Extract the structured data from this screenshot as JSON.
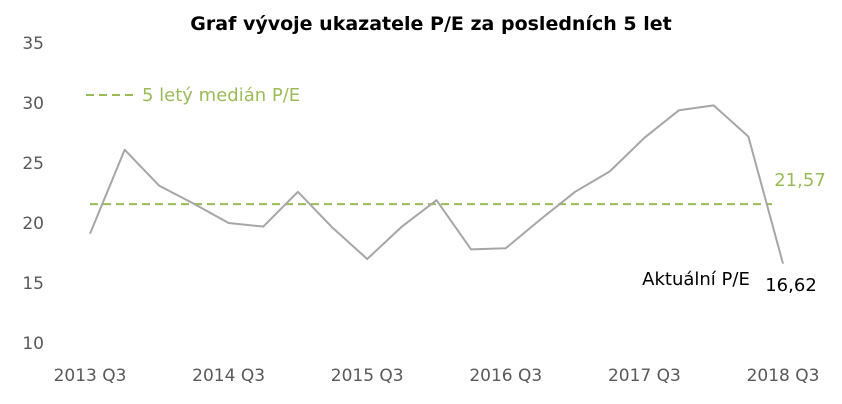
{
  "chart_data": {
    "type": "line",
    "title": "Graf vývoje ukazatele P/E za posledních 5 let",
    "xlabel": "",
    "ylabel": "",
    "ylim": [
      10,
      35
    ],
    "y_ticks": [
      "10",
      "15",
      "20",
      "25",
      "30",
      "35"
    ],
    "x_tick_labels": [
      "2013 Q3",
      "2014 Q3",
      "2015 Q3",
      "2016 Q3",
      "2017 Q3",
      "2018 Q3"
    ],
    "x": [
      "2013 Q3",
      "2013 Q4",
      "2014 Q1",
      "2014 Q2",
      "2014 Q3",
      "2014 Q4",
      "2015 Q1",
      "2015 Q2",
      "2015 Q3",
      "2015 Q4",
      "2016 Q1",
      "2016 Q2",
      "2016 Q3",
      "2016 Q4",
      "2017 Q1",
      "2017 Q2",
      "2017 Q3",
      "2017 Q4",
      "2018 Q1",
      "2018 Q2",
      "2018 Q3"
    ],
    "series": [
      {
        "values": [
          19.1,
          26.1,
          23.1,
          21.6,
          20.0,
          19.7,
          22.6,
          19.6,
          17.0,
          19.7,
          21.9,
          17.8,
          17.9,
          20.3,
          22.6,
          24.3,
          27.1,
          29.4,
          29.8,
          27.2,
          16.62
        ],
        "color": "#a6a6a6"
      }
    ],
    "reference_line": {
      "value": 21.57,
      "value_label": "21,57",
      "legend_label": "5 letý medián P/E",
      "style": "dashed",
      "color": "#9bbb59"
    },
    "annotations": [
      {
        "text": "Aktuální P/E",
        "color": "#000000"
      },
      {
        "text": "16,62",
        "color": "#000000"
      }
    ],
    "legend_position": "top-left",
    "grid": false
  }
}
